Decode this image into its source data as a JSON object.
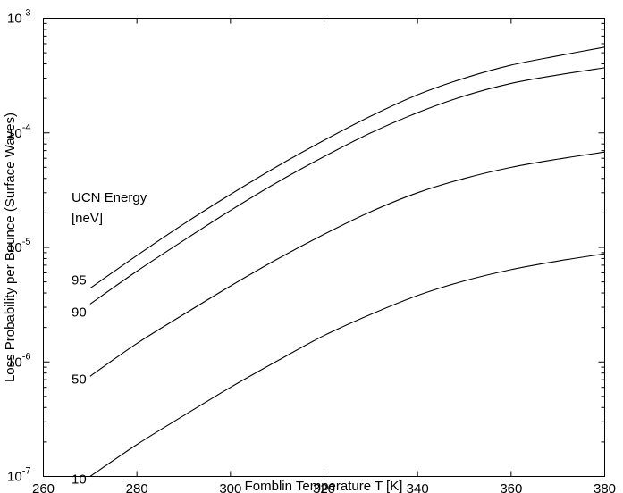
{
  "chart_data": {
    "type": "line",
    "title": "",
    "xlabel": "Fomblin Temperature T [K]",
    "ylabel": "Loss Probability per Bounce (Surface Waves)",
    "xlim": [
      260,
      380
    ],
    "ylim": [
      1e-07,
      0.001
    ],
    "yscale": "log",
    "grid": false,
    "x_ticks": [
      {
        "value": 260,
        "label": "260"
      },
      {
        "value": 280,
        "label": "280"
      },
      {
        "value": 300,
        "label": "300"
      },
      {
        "value": 320,
        "label": "320"
      },
      {
        "value": 340,
        "label": "340"
      },
      {
        "value": 360,
        "label": "360"
      },
      {
        "value": 380,
        "label": "380"
      }
    ],
    "y_ticks": [
      {
        "exp": -7,
        "base": "10",
        "sup": "-7"
      },
      {
        "exp": -6,
        "base": "10",
        "sup": "-6"
      },
      {
        "exp": -5,
        "base": "10",
        "sup": "-5"
      },
      {
        "exp": -4,
        "base": "10",
        "sup": "-4"
      },
      {
        "exp": -3,
        "base": "10",
        "sup": "-3"
      }
    ],
    "legend_title": [
      "UCN Energy",
      "[neV]"
    ],
    "x": [
      270,
      280,
      290,
      300,
      310,
      320,
      330,
      340,
      350,
      360,
      370,
      380
    ],
    "series": [
      {
        "label": "95",
        "values": [
          4.4e-06,
          8.5e-06,
          1.6e-05,
          2.9e-05,
          5.1e-05,
          8.6e-05,
          0.00014,
          0.000215,
          0.0003,
          0.00039,
          0.00047,
          0.00056
        ]
      },
      {
        "label": "90",
        "values": [
          3.2e-06,
          6.2e-06,
          1.15e-05,
          2.1e-05,
          3.7e-05,
          6.2e-05,
          0.0001,
          0.00015,
          0.00021,
          0.00027,
          0.00032,
          0.00037
        ]
      },
      {
        "label": "50",
        "values": [
          7.5e-07,
          1.45e-06,
          2.6e-06,
          4.6e-06,
          7.9e-06,
          1.3e-05,
          2.05e-05,
          3e-05,
          4e-05,
          5e-05,
          5.9e-05,
          6.8e-05
        ]
      },
      {
        "label": "10",
        "values": [
          1e-07,
          1.9e-07,
          3.4e-07,
          6e-07,
          1.02e-06,
          1.7e-06,
          2.6e-06,
          3.8e-06,
          5.1e-06,
          6.4e-06,
          7.6e-06,
          8.8e-06
        ]
      }
    ]
  }
}
